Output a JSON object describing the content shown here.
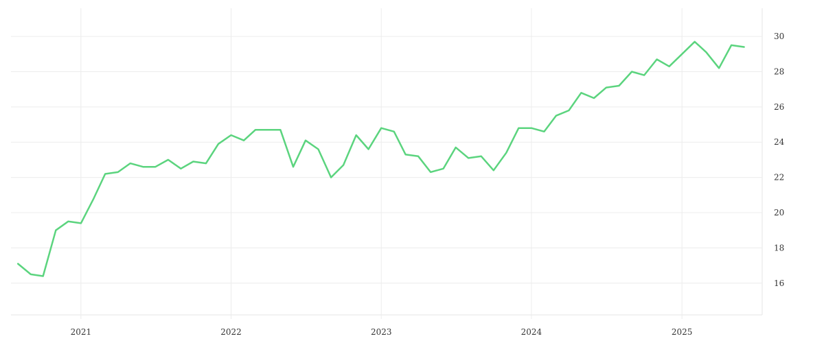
{
  "chart_data": {
    "type": "line",
    "title": "",
    "xlabel": "",
    "ylabel": "",
    "x_axis": {
      "type": "time",
      "range": [
        "2020-07-15",
        "2025-07-15"
      ],
      "tick_values": [
        "2021-01-01",
        "2022-01-01",
        "2023-01-01",
        "2024-01-01",
        "2025-01-01"
      ],
      "tick_labels": [
        "2021",
        "2022",
        "2023",
        "2024",
        "2025"
      ]
    },
    "y_axis": {
      "position": "right",
      "range": [
        14.2,
        31.6
      ],
      "tick_values": [
        16,
        18,
        20,
        22,
        24,
        26,
        28,
        30
      ],
      "tick_labels": [
        "16",
        "18",
        "20",
        "22",
        "24",
        "26",
        "28",
        "30"
      ]
    },
    "grid": true,
    "legend": "none",
    "series": [
      {
        "color": "#5bd47e",
        "x": [
          "2020-08-01",
          "2020-09-01",
          "2020-10-01",
          "2020-11-01",
          "2020-12-01",
          "2021-01-01",
          "2021-02-01",
          "2021-03-01",
          "2021-04-01",
          "2021-05-01",
          "2021-06-01",
          "2021-07-01",
          "2021-08-01",
          "2021-09-01",
          "2021-10-01",
          "2021-11-01",
          "2021-12-01",
          "2022-01-01",
          "2022-02-01",
          "2022-03-01",
          "2022-04-01",
          "2022-05-01",
          "2022-06-01",
          "2022-07-01",
          "2022-08-01",
          "2022-09-01",
          "2022-10-01",
          "2022-11-01",
          "2022-12-01",
          "2023-01-01",
          "2023-02-01",
          "2023-03-01",
          "2023-04-01",
          "2023-05-01",
          "2023-06-01",
          "2023-07-01",
          "2023-08-01",
          "2023-09-01",
          "2023-10-01",
          "2023-11-01",
          "2023-12-01",
          "2024-01-01",
          "2024-02-01",
          "2024-03-01",
          "2024-04-01",
          "2024-05-01",
          "2024-06-01",
          "2024-07-01",
          "2024-08-01",
          "2024-09-01",
          "2024-10-01",
          "2024-11-01",
          "2024-12-01",
          "2025-01-01",
          "2025-02-01",
          "2025-03-01",
          "2025-04-01",
          "2025-05-01",
          "2025-06-01"
        ],
        "values": [
          17.1,
          16.5,
          16.4,
          19.0,
          19.5,
          19.4,
          20.8,
          22.2,
          22.3,
          22.8,
          22.6,
          22.6,
          23.0,
          22.5,
          22.9,
          22.8,
          23.9,
          24.4,
          24.1,
          24.7,
          24.7,
          24.7,
          22.6,
          24.1,
          23.6,
          22.0,
          22.7,
          24.4,
          23.6,
          24.8,
          24.6,
          23.3,
          23.2,
          22.3,
          22.5,
          23.7,
          23.1,
          23.2,
          22.4,
          23.4,
          24.8,
          24.8,
          24.6,
          25.5,
          25.8,
          26.8,
          26.5,
          27.1,
          27.2,
          28.0,
          27.8,
          28.7,
          28.3,
          29.0,
          29.7,
          29.1,
          28.2,
          29.5,
          29.4
        ]
      }
    ]
  }
}
